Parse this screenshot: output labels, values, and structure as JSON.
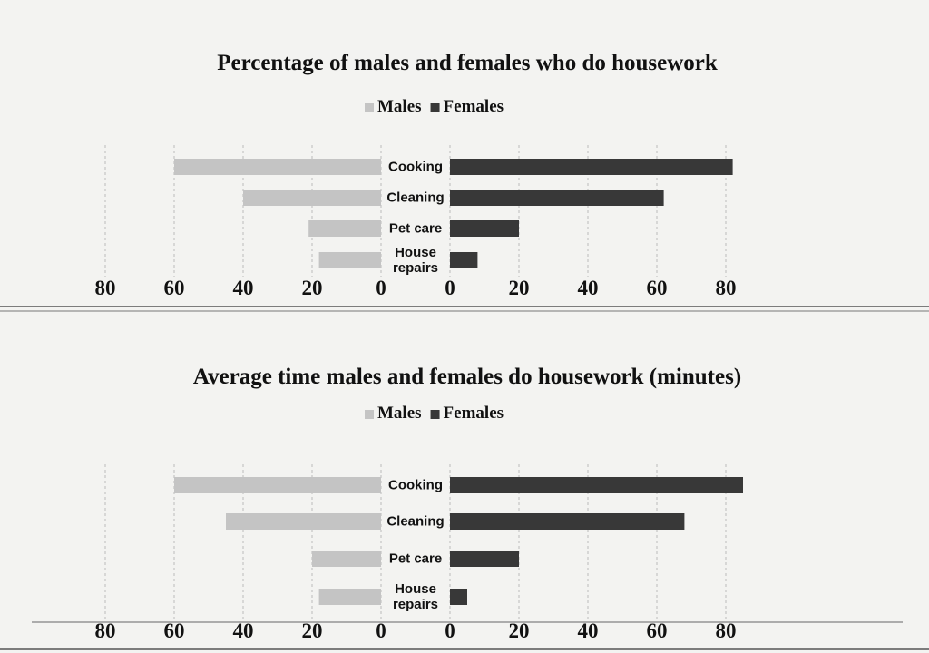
{
  "chart_data": [
    {
      "type": "butterfly",
      "title": "Percentage of males and females who do housework",
      "categories": [
        "Cooking",
        "Cleaning",
        "Pet care",
        "House repairs"
      ],
      "series": [
        {
          "name": "Males",
          "color": "#c4c4c4",
          "values": [
            60,
            40,
            21,
            18
          ]
        },
        {
          "name": "Females",
          "color": "#383838",
          "values": [
            82,
            62,
            20,
            8
          ]
        }
      ],
      "xlim": [
        0,
        80
      ],
      "xticks": [
        0,
        20,
        40,
        60,
        80
      ],
      "grid": true,
      "legend": "top"
    },
    {
      "type": "butterfly",
      "title": "Average time males and females do housework (minutes)",
      "categories": [
        "Cooking",
        "Cleaning",
        "Pet care",
        "House repairs"
      ],
      "series": [
        {
          "name": "Males",
          "color": "#c4c4c4",
          "values": [
            60,
            45,
            20,
            18
          ]
        },
        {
          "name": "Females",
          "color": "#383838",
          "values": [
            85,
            68,
            20,
            5
          ]
        }
      ],
      "xlim": [
        0,
        80
      ],
      "xticks": [
        0,
        20,
        40,
        60,
        80
      ],
      "grid": true,
      "legend": "top"
    }
  ]
}
